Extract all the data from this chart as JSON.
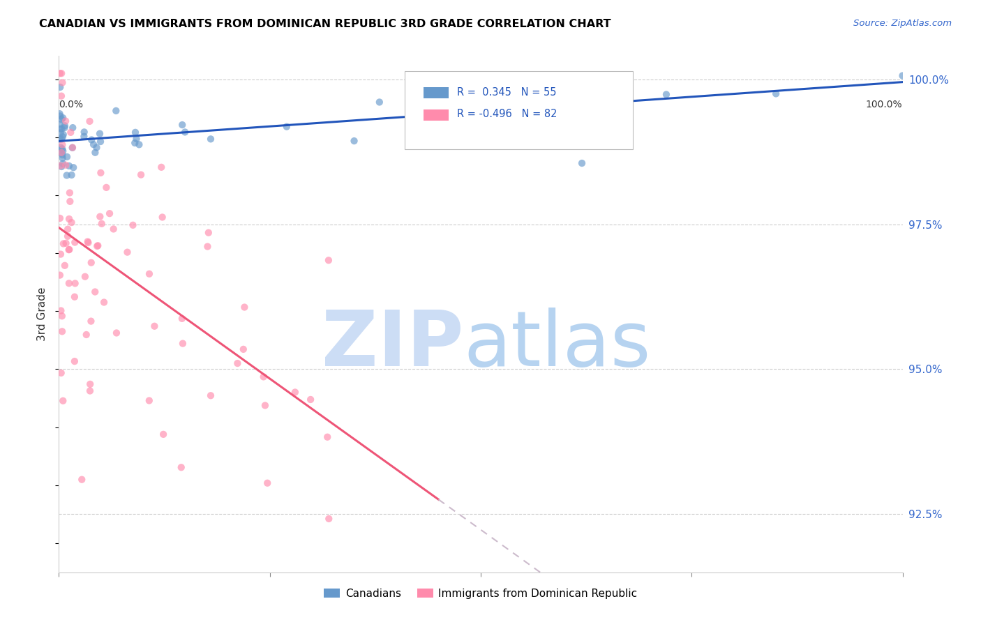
{
  "title": "CANADIAN VS IMMIGRANTS FROM DOMINICAN REPUBLIC 3RD GRADE CORRELATION CHART",
  "source": "Source: ZipAtlas.com",
  "ylabel": "3rd Grade",
  "xmin": 0.0,
  "xmax": 1.0,
  "ymin": 0.915,
  "ymax": 1.004,
  "yticks": [
    0.925,
    0.95,
    0.975,
    1.0
  ],
  "ytick_labels": [
    "92.5%",
    "95.0%",
    "97.5%",
    "100.0%"
  ],
  "legend_r_canadian": "R =  0.345",
  "legend_n_canadian": "N = 55",
  "legend_r_dr": "R = -0.496",
  "legend_n_dr": "N = 82",
  "canadian_color": "#6699CC",
  "dr_color": "#FF8BAC",
  "trend_canadian_color": "#2255BB",
  "trend_dr_color": "#EE5577",
  "trend_ext_color": "#CCBBCC",
  "watermark_zip_color": "#CCDDF5",
  "watermark_atlas_color": "#AACCEE",
  "ca_seed": 12,
  "dr_seed": 7
}
